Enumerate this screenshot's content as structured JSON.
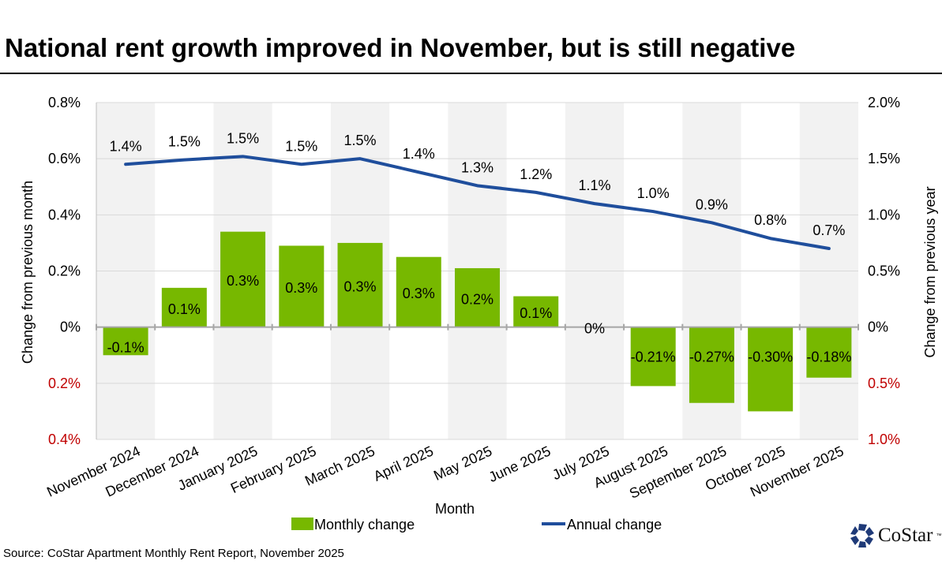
{
  "title": "National rent growth improved in November, but is still negative",
  "source": "Source: CoStar Apartment Monthly Rent Report, November 2025",
  "logo": {
    "text": "CoStar",
    "tm": "™"
  },
  "colors": {
    "bar": "#77b800",
    "line": "#1f4e9c",
    "negative_tick": "#c00000",
    "shade": "#f2f2f2"
  },
  "chart_data": {
    "type": "bar+line",
    "title": "National rent growth improved in November, but is still negative",
    "xlabel": "Month",
    "ylabel_left": "Change from previous month",
    "ylabel_right": "Change from previous year",
    "categories": [
      "November 2024",
      "December 2024",
      "January 2025",
      "February 2025",
      "March 2025",
      "April 2025",
      "May 2025",
      "June 2025",
      "July 2025",
      "August 2025",
      "September 2025",
      "October 2025",
      "November 2025"
    ],
    "series": [
      {
        "name": "Monthly change",
        "type": "bar",
        "axis": "left",
        "values": [
          -0.1,
          0.14,
          0.34,
          0.29,
          0.3,
          0.25,
          0.21,
          0.11,
          0.0,
          -0.21,
          -0.27,
          -0.3,
          -0.18
        ],
        "labels": [
          "-0.1%",
          "0.1%",
          "0.3%",
          "0.3%",
          "0.3%",
          "0.3%",
          "0.2%",
          "0.1%",
          "0%",
          "-0.21%",
          "-0.27%",
          "-0.30%",
          "-0.18%"
        ]
      },
      {
        "name": "Annual change",
        "type": "line",
        "axis": "right",
        "values": [
          1.45,
          1.49,
          1.52,
          1.45,
          1.5,
          1.38,
          1.26,
          1.2,
          1.1,
          1.03,
          0.93,
          0.79,
          0.7
        ],
        "labels": [
          "1.4%",
          "1.5%",
          "1.5%",
          "1.5%",
          "1.5%",
          "1.4%",
          "1.3%",
          "1.2%",
          "1.1%",
          "1.0%",
          "0.9%",
          "0.8%",
          "0.7%"
        ]
      }
    ],
    "ylim_left": [
      -0.4,
      0.8
    ],
    "ylim_right": [
      -1.0,
      2.0
    ],
    "yticks_left": [
      {
        "v": 0.8,
        "label": "0.8%"
      },
      {
        "v": 0.6,
        "label": "0.6%"
      },
      {
        "v": 0.4,
        "label": "0.4%"
      },
      {
        "v": 0.2,
        "label": "0.2%"
      },
      {
        "v": 0,
        "label": "0%"
      },
      {
        "v": -0.2,
        "label": "0.2%",
        "negative": true
      },
      {
        "v": -0.4,
        "label": "0.4%",
        "negative": true
      }
    ],
    "yticks_right": [
      {
        "v": 2.0,
        "label": "2.0%"
      },
      {
        "v": 1.5,
        "label": "1.5%"
      },
      {
        "v": 1.0,
        "label": "1.0%"
      },
      {
        "v": 0.5,
        "label": "0.5%"
      },
      {
        "v": 0,
        "label": "0%"
      },
      {
        "v": -0.5,
        "label": "0.5%",
        "negative": true
      },
      {
        "v": -1.0,
        "label": "1.0%",
        "negative": true
      }
    ],
    "grid": true,
    "alternating_column_shading": true,
    "legend": {
      "placement": "bottom",
      "items": [
        "Monthly change",
        "Annual change"
      ]
    }
  }
}
